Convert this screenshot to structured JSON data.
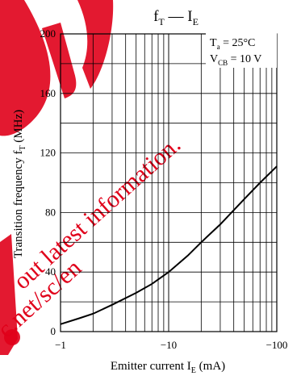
{
  "chart_data": {
    "type": "line",
    "title": "f_T — I_E",
    "title_parts": {
      "main": "f",
      "sub1": "T",
      "dash": " — ",
      "main2": "I",
      "sub2": "E"
    },
    "xlabel": {
      "text": "Emitter current  I",
      "sub": "E",
      "unit": "  (mA)"
    },
    "ylabel": {
      "text": "Transition frequency  f",
      "sub": "T",
      "unit": "  (MHz)"
    },
    "x_scale": "log",
    "xlim": [
      -1,
      -100
    ],
    "ylim": [
      0,
      200
    ],
    "x_ticks": [
      -1,
      -10,
      -100
    ],
    "x_tick_labels": [
      "−1",
      "−10",
      "−100"
    ],
    "y_ticks": [
      0,
      40,
      80,
      120,
      160,
      200
    ],
    "y_tick_labels": [
      "0",
      "40",
      "80",
      "120",
      "160",
      "200"
    ],
    "grid": true,
    "conditions": [
      {
        "main": "T",
        "sub": "a",
        "rest": " = 25°C"
      },
      {
        "main": "V",
        "sub": "CB",
        "rest": " = 10 V"
      }
    ],
    "series": [
      {
        "x": [
          -1,
          -1.5,
          -2,
          -3,
          -5,
          -7,
          -10,
          -15,
          -20,
          -30,
          -50,
          -70,
          -100
        ],
        "y": [
          5,
          9,
          12,
          18,
          26,
          32,
          40,
          51,
          60,
          72,
          89,
          100,
          111
        ]
      }
    ]
  },
  "watermark": {
    "logo_letters": "UE",
    "text_lines": [
      "out latest information.",
      "c.net/sc/en"
    ],
    "color": "#e0001a"
  }
}
